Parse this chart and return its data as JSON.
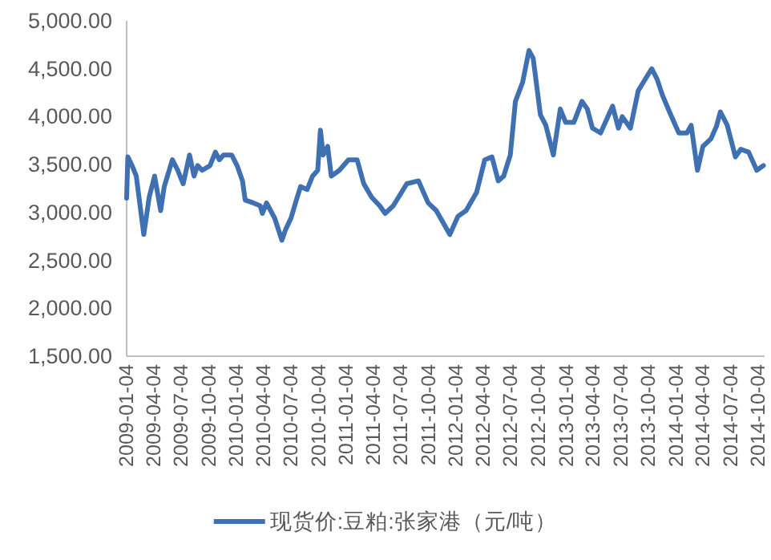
{
  "chart_data": {
    "type": "line",
    "xlim": [
      "2009-01-04",
      "2014-10-25"
    ],
    "ylim": [
      1500,
      5000
    ],
    "yticks": [
      {
        "value": 1500,
        "label": "1,500.00"
      },
      {
        "value": 2000,
        "label": "2,000.00"
      },
      {
        "value": 2500,
        "label": "2,500.00"
      },
      {
        "value": 3000,
        "label": "3,000.00"
      },
      {
        "value": 3500,
        "label": "3,500.00"
      },
      {
        "value": 4000,
        "label": "4,000.00"
      },
      {
        "value": 4500,
        "label": "4,500.00"
      },
      {
        "value": 5000,
        "label": "5,000.00"
      }
    ],
    "xticks": [
      "2009-01-04",
      "2009-04-04",
      "2009-07-04",
      "2009-10-04",
      "2010-01-04",
      "2010-04-04",
      "2010-07-04",
      "2010-10-04",
      "2011-01-04",
      "2011-04-04",
      "2011-07-04",
      "2011-10-04",
      "2012-01-04",
      "2012-04-04",
      "2012-07-04",
      "2012-10-04",
      "2013-01-04",
      "2013-04-04",
      "2013-07-04",
      "2013-10-04",
      "2014-01-04",
      "2014-04-04",
      "2014-07-04",
      "2014-10-04"
    ],
    "grid": false,
    "legend": "bottom",
    "marker": "none",
    "line_style": "solid",
    "series": [
      {
        "name": "现货价:豆粕:张家港（元/吨）",
        "color": "#3e70b2",
        "x": [
          "2009-01-04",
          "2009-01-08",
          "2009-01-22",
          "2009-02-05",
          "2009-03-02",
          "2009-03-20",
          "2009-04-07",
          "2009-04-27",
          "2009-05-09",
          "2009-06-05",
          "2009-06-23",
          "2009-07-11",
          "2009-08-01",
          "2009-08-16",
          "2009-08-28",
          "2009-09-12",
          "2009-10-08",
          "2009-10-26",
          "2009-11-08",
          "2009-11-22",
          "2009-12-19",
          "2010-01-06",
          "2010-01-24",
          "2010-02-02",
          "2010-03-01",
          "2010-03-24",
          "2010-03-31",
          "2010-04-14",
          "2010-05-11",
          "2010-06-04",
          "2010-06-16",
          "2010-07-04",
          "2010-07-22",
          "2010-08-05",
          "2010-08-27",
          "2010-09-14",
          "2010-10-01",
          "2010-10-10",
          "2010-10-19",
          "2010-11-03",
          "2010-11-15",
          "2010-12-12",
          "2011-01-11",
          "2011-02-09",
          "2011-03-03",
          "2011-03-29",
          "2011-04-25",
          "2011-05-13",
          "2011-06-09",
          "2011-07-24",
          "2011-09-01",
          "2011-10-03",
          "2011-10-30",
          "2011-12-14",
          "2012-01-10",
          "2012-02-06",
          "2012-03-12",
          "2012-04-08",
          "2012-05-02",
          "2012-05-23",
          "2012-06-10",
          "2012-07-02",
          "2012-07-19",
          "2012-08-12",
          "2012-09-02",
          "2012-09-16",
          "2012-10-10",
          "2012-10-28",
          "2012-11-22",
          "2012-12-15",
          "2013-01-02",
          "2013-01-29",
          "2013-02-25",
          "2013-03-15",
          "2013-04-01",
          "2013-04-28",
          "2013-06-07",
          "2013-06-26",
          "2013-07-09",
          "2013-08-05",
          "2013-08-31",
          "2013-09-27",
          "2013-10-15",
          "2013-11-02",
          "2013-11-20",
          "2013-12-17",
          "2014-01-13",
          "2014-02-09",
          "2014-02-23",
          "2014-03-16",
          "2014-04-03",
          "2014-04-30",
          "2014-05-18",
          "2014-05-31",
          "2014-06-23",
          "2014-07-20",
          "2014-08-07",
          "2014-09-02",
          "2014-09-29",
          "2014-10-21"
        ],
        "values": [
          3150,
          3580,
          3490,
          3380,
          2770,
          3160,
          3380,
          3020,
          3270,
          3550,
          3440,
          3300,
          3600,
          3380,
          3490,
          3440,
          3490,
          3630,
          3550,
          3600,
          3600,
          3490,
          3330,
          3130,
          3100,
          3070,
          2990,
          3100,
          2940,
          2710,
          2820,
          2940,
          3130,
          3270,
          3240,
          3380,
          3440,
          3860,
          3600,
          3690,
          3380,
          3440,
          3550,
          3550,
          3300,
          3160,
          3070,
          2990,
          3070,
          3300,
          3330,
          3100,
          3020,
          2770,
          2960,
          3020,
          3210,
          3550,
          3580,
          3330,
          3380,
          3600,
          4160,
          4360,
          4690,
          4610,
          4020,
          3910,
          3600,
          4080,
          3940,
          3940,
          4160,
          4080,
          3880,
          3830,
          4110,
          3880,
          4000,
          3880,
          4270,
          4410,
          4500,
          4390,
          4220,
          4020,
          3830,
          3830,
          3910,
          3440,
          3690,
          3770,
          3900,
          4050,
          3910,
          3580,
          3660,
          3630,
          3440,
          3490
        ]
      }
    ]
  }
}
